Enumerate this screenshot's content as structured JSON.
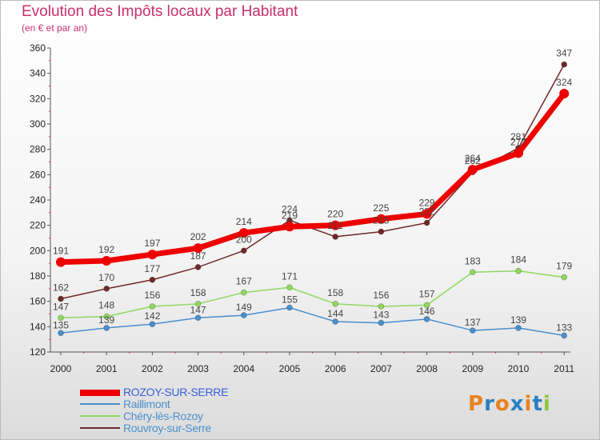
{
  "header": {
    "title": "Evolution des Impôts locaux par Habitant",
    "subtitle": "(en € et par an)"
  },
  "logo": {
    "text": "Proxiti",
    "colors": [
      "#e8821e",
      "#2a7fc2",
      "#e8821e",
      "#2a7fc2",
      "#e8821e",
      "#2a7fc2",
      "#8ec63f"
    ]
  },
  "chart_data": {
    "type": "line",
    "title": "Evolution des Impôts locaux par Habitant",
    "subtitle": "(en € et par an)",
    "xlabel": "",
    "ylabel": "",
    "categories": [
      "2000",
      "2001",
      "2002",
      "2003",
      "2004",
      "2005",
      "2006",
      "2007",
      "2008",
      "2009",
      "2010",
      "2011"
    ],
    "ylim": [
      120,
      360
    ],
    "yticks": [
      120,
      140,
      160,
      180,
      200,
      220,
      240,
      260,
      280,
      300,
      320,
      340,
      360
    ],
    "legend_position": "bottom-left",
    "grid": false,
    "series": [
      {
        "name": "ROZOY-SUR-SERRE",
        "color": "#ee0000",
        "values": [
          191,
          192,
          197,
          202,
          214,
          219,
          220,
          225,
          229,
          264,
          277,
          324
        ],
        "labels": [
          "191",
          "192",
          "197",
          "202",
          "214",
          "219",
          "220",
          "225",
          "229",
          "264",
          "277",
          "324"
        ]
      },
      {
        "name": "Raillimont",
        "color": "#4b8fcc",
        "values": [
          135,
          139,
          142,
          147,
          149,
          155,
          144,
          143,
          146,
          137,
          139,
          133
        ],
        "labels": [
          "135",
          "139",
          "142",
          "147",
          "149",
          "155",
          "144",
          "143",
          "146",
          "137",
          "139",
          "133"
        ]
      },
      {
        "name": "Chéry-lès-Rozoy",
        "color": "#90d860",
        "values": [
          147,
          148,
          156,
          158,
          167,
          171,
          158,
          156,
          157,
          183,
          184,
          179
        ],
        "labels": [
          "147",
          "148",
          "156",
          "158",
          "167",
          "171",
          "158",
          "156",
          "157",
          "183",
          "184",
          "179"
        ]
      },
      {
        "name": "Rouvroy-sur-Serre",
        "color": "#702828",
        "values": [
          162,
          170,
          177,
          187,
          200,
          224,
          211,
          215,
          222,
          262,
          281,
          347
        ],
        "labels": [
          "162",
          "170",
          "177",
          "187",
          "200",
          "224",
          "211",
          "215",
          "222",
          "262",
          "281",
          "347"
        ]
      }
    ]
  }
}
